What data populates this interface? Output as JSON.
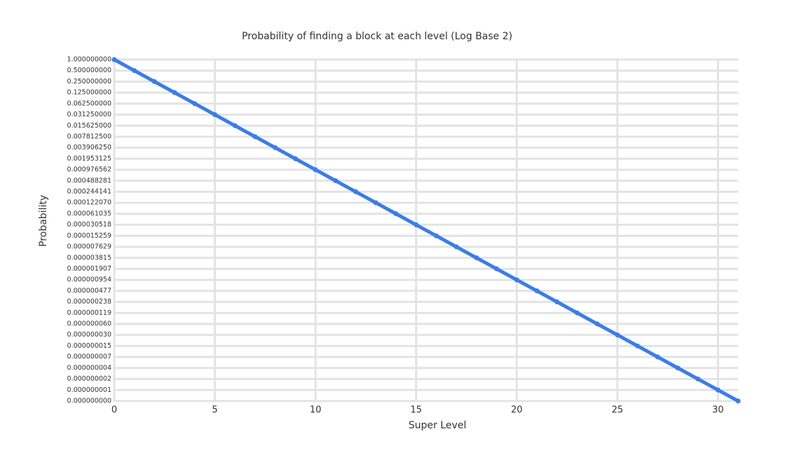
{
  "chart_data": {
    "type": "line",
    "title": "Probability of finding a block at each level (Log Base 2)",
    "x_label": "Super Level",
    "y_label": "Probability",
    "x": [
      0,
      1,
      2,
      3,
      4,
      5,
      6,
      7,
      8,
      9,
      10,
      11,
      12,
      13,
      14,
      15,
      16,
      17,
      18,
      19,
      20,
      21,
      22,
      23,
      24,
      25,
      26,
      27,
      28,
      29,
      30,
      31
    ],
    "values": [
      1,
      0.5,
      0.25,
      0.125,
      0.0625,
      0.03125,
      0.015625,
      0.0078125,
      0.00390625,
      0.001953125,
      0.0009765625,
      0.00048828125,
      0.000244140625,
      0.0001220703125,
      6.103515625e-05,
      3.0517578125e-05,
      1.52587890625e-05,
      7.62939453125e-06,
      3.814697265625e-06,
      1.9073486328125e-06,
      9.5367431640625e-07,
      4.76837158203125e-07,
      2.384185791015625e-07,
      1.1920928955078125e-07,
      5.960464477539063e-08,
      2.9802322387695312e-08,
      1.4901161193847656e-08,
      7.450580596923828e-09,
      3.725290298461914e-09,
      1.862645149230957e-09,
      9.313225746154785e-10,
      4.656612873077393e-10
    ],
    "color": "#3b7de9",
    "xlim": [
      0,
      31
    ],
    "xticks": [
      0,
      5,
      10,
      15,
      20,
      25,
      30
    ],
    "ylim": [
      4.656612873077393e-10,
      1
    ],
    "yscale": "log",
    "log_base": 2,
    "yticks": [
      {
        "value": 1,
        "label": "1.000000000"
      },
      {
        "value": 0.5,
        "label": "0.500000000"
      },
      {
        "value": 0.25,
        "label": "0.250000000"
      },
      {
        "value": 0.125,
        "label": "0.125000000"
      },
      {
        "value": 0.0625,
        "label": "0.062500000"
      },
      {
        "value": 0.03125,
        "label": "0.031250000"
      },
      {
        "value": 0.015625,
        "label": "0.015625000"
      },
      {
        "value": 0.0078125,
        "label": "0.007812500"
      },
      {
        "value": 0.00390625,
        "label": "0.003906250"
      },
      {
        "value": 0.001953125,
        "label": "0.001953125"
      },
      {
        "value": 0.0009765625,
        "label": "0.000976562"
      },
      {
        "value": 0.00048828125,
        "label": "0.000488281"
      },
      {
        "value": 0.000244140625,
        "label": "0.000244141"
      },
      {
        "value": 0.0001220703125,
        "label": "0.000122070"
      },
      {
        "value": 6.103515625e-05,
        "label": "0.000061035"
      },
      {
        "value": 3.0517578125e-05,
        "label": "0.000030518"
      },
      {
        "value": 1.52587890625e-05,
        "label": "0.000015259"
      },
      {
        "value": 7.62939453125e-06,
        "label": "0.000007629"
      },
      {
        "value": 3.814697265625e-06,
        "label": "0.000003815"
      },
      {
        "value": 1.9073486328125e-06,
        "label": "0.000001907"
      },
      {
        "value": 9.5367431640625e-07,
        "label": "0.000000954"
      },
      {
        "value": 4.76837158203125e-07,
        "label": "0.000000477"
      },
      {
        "value": 2.384185791015625e-07,
        "label": "0.000000238"
      },
      {
        "value": 1.1920928955078125e-07,
        "label": "0.000000119"
      },
      {
        "value": 5.960464477539063e-08,
        "label": "0.000000060"
      },
      {
        "value": 2.9802322387695312e-08,
        "label": "0.000000030"
      },
      {
        "value": 1.4901161193847656e-08,
        "label": "0.000000015"
      },
      {
        "value": 7.450580596923828e-09,
        "label": "0.000000007"
      },
      {
        "value": 3.725290298461914e-09,
        "label": "0.000000004"
      },
      {
        "value": 1.862645149230957e-09,
        "label": "0.000000002"
      },
      {
        "value": 9.313225746154785e-10,
        "label": "0.000000001"
      },
      {
        "value": 4.656612873077393e-10,
        "label": "0.000000000"
      }
    ],
    "grid": true
  }
}
